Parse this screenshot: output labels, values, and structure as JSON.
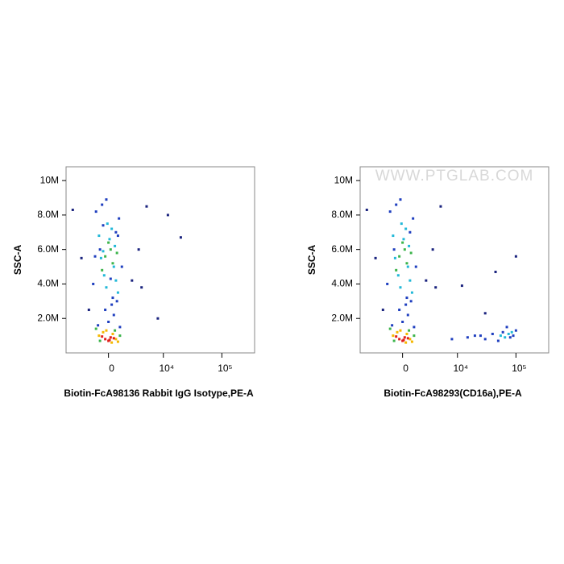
{
  "chart_data": [
    {
      "type": "scatter",
      "xscale": "biexponential",
      "xlabel": "Biotin-FcA98136 Rabbit IgG Isotype,PE-A",
      "ylabel": "SSC-A",
      "xlim": [
        -6000,
        360000
      ],
      "ylim": [
        0,
        10800000
      ],
      "xticks": [
        {
          "value": 0,
          "label": "0"
        },
        {
          "value": 10000,
          "label": "10⁴"
        },
        {
          "value": 100000,
          "label": "10⁵"
        }
      ],
      "yticks": [
        {
          "value": 2000000,
          "label": "2.0M"
        },
        {
          "value": 4000000,
          "label": "4.0M"
        },
        {
          "value": 6000000,
          "label": "6.0M"
        },
        {
          "value": 8000000,
          "label": "8.0M"
        },
        {
          "value": 10000000,
          "label": "10M"
        }
      ],
      "series": [
        {
          "color": "#1f3fbf",
          "x": [
            -1200,
            1000,
            -600,
            800,
            -300,
            500,
            -1500,
            1300,
            -200,
            400,
            0,
            -800,
            700,
            300,
            -1000,
            1100,
            -500,
            900,
            -1300,
            200
          ],
          "values": [
            8200000,
            7800000,
            8600000,
            3000000,
            2500000,
            2200000,
            4000000,
            5000000,
            8900000,
            3200000,
            1800000,
            6000000,
            7000000,
            2800000,
            1600000,
            1500000,
            7400000,
            6800000,
            5600000,
            4300000
          ]
        },
        {
          "color": "#22b8d8",
          "x": [
            -400,
            500,
            -900,
            300,
            700,
            -200,
            100,
            -700,
            600,
            -100,
            900,
            -500
          ],
          "values": [
            4500000,
            5000000,
            6800000,
            7200000,
            4200000,
            3800000,
            6600000,
            5500000,
            6200000,
            7500000,
            3500000,
            5900000
          ]
        },
        {
          "color": "#3cb44b",
          "x": [
            -1200,
            1100,
            -800,
            600,
            -300,
            400,
            200,
            -600,
            800,
            0
          ],
          "values": [
            1400000,
            1000000,
            700000,
            1300000,
            5600000,
            5200000,
            6000000,
            4800000,
            5800000,
            6400000
          ]
        },
        {
          "color": "#f5b800",
          "x": [
            -900,
            700,
            -500,
            400,
            900,
            -200,
            300
          ],
          "values": [
            1000000,
            800000,
            1200000,
            1100000,
            650000,
            1300000,
            600000
          ]
        },
        {
          "color": "#e0201b",
          "x": [
            -300,
            200,
            0,
            500,
            -600,
            100
          ],
          "values": [
            800000,
            900000,
            700000,
            850000,
            950000,
            750000
          ]
        },
        {
          "color": "#1a237e",
          "x": [
            -4500,
            -3000,
            2500,
            4000,
            3500,
            -2000,
            5000,
            12000,
            20000,
            8000
          ],
          "values": [
            8300000,
            5500000,
            4200000,
            3800000,
            6000000,
            2500000,
            8500000,
            8000000,
            6700000,
            2000000
          ]
        }
      ]
    },
    {
      "type": "scatter",
      "xscale": "biexponential",
      "xlabel": "Biotin-FcA98293(CD16a),PE-A",
      "ylabel": "SSC-A",
      "watermark": "WWW.PTGLAB.COM",
      "xlim": [
        -6000,
        360000
      ],
      "ylim": [
        0,
        10800000
      ],
      "xticks": [
        {
          "value": 0,
          "label": "0"
        },
        {
          "value": 10000,
          "label": "10⁴"
        },
        {
          "value": 100000,
          "label": "10⁵"
        }
      ],
      "yticks": [
        {
          "value": 2000000,
          "label": "2.0M"
        },
        {
          "value": 4000000,
          "label": "4.0M"
        },
        {
          "value": 6000000,
          "label": "6.0M"
        },
        {
          "value": 8000000,
          "label": "8.0M"
        },
        {
          "value": 10000000,
          "label": "10M"
        }
      ],
      "series": [
        {
          "color": "#1f3fbf",
          "x": [
            -1200,
            1000,
            -600,
            800,
            -300,
            500,
            -1500,
            1300,
            -200,
            400,
            0,
            -800,
            700,
            300,
            -1000,
            1100,
            8000,
            15000,
            25000,
            40000,
            60000,
            80000,
            100000,
            50000,
            70000,
            20000,
            30000,
            90000
          ],
          "values": [
            8200000,
            7800000,
            8600000,
            3000000,
            2500000,
            2200000,
            4000000,
            5000000,
            8900000,
            3200000,
            1800000,
            6000000,
            7000000,
            2800000,
            1600000,
            1500000,
            800000,
            900000,
            1000000,
            1100000,
            1200000,
            900000,
            1300000,
            700000,
            1500000,
            1000000,
            800000,
            1000000
          ]
        },
        {
          "color": "#22b8d8",
          "x": [
            -400,
            500,
            -900,
            300,
            700,
            -200,
            100,
            -700,
            600,
            -100,
            900,
            55000,
            75000,
            65000,
            85000
          ],
          "values": [
            4500000,
            5000000,
            6800000,
            7200000,
            4200000,
            3800000,
            6600000,
            5500000,
            6200000,
            7500000,
            3500000,
            1000000,
            1100000,
            900000,
            1200000
          ]
        },
        {
          "color": "#3cb44b",
          "x": [
            -1200,
            1100,
            -800,
            600,
            -300,
            400,
            200,
            -600,
            800,
            0
          ],
          "values": [
            1400000,
            1000000,
            700000,
            1300000,
            5600000,
            5200000,
            6000000,
            4800000,
            5800000,
            6400000
          ]
        },
        {
          "color": "#f5b800",
          "x": [
            -900,
            700,
            -500,
            400,
            900,
            -200,
            300
          ],
          "values": [
            1000000,
            800000,
            1200000,
            1100000,
            650000,
            1300000,
            600000
          ]
        },
        {
          "color": "#e0201b",
          "x": [
            -300,
            200,
            0,
            500,
            -600,
            100
          ],
          "values": [
            800000,
            900000,
            700000,
            850000,
            950000,
            750000
          ]
        },
        {
          "color": "#1a237e",
          "x": [
            -4500,
            -3000,
            2500,
            4000,
            3500,
            -2000,
            5000,
            30000,
            100000,
            45000,
            12000
          ],
          "values": [
            8300000,
            5500000,
            4200000,
            3800000,
            6000000,
            2500000,
            8500000,
            2300000,
            5600000,
            4700000,
            3900000
          ]
        }
      ]
    }
  ]
}
